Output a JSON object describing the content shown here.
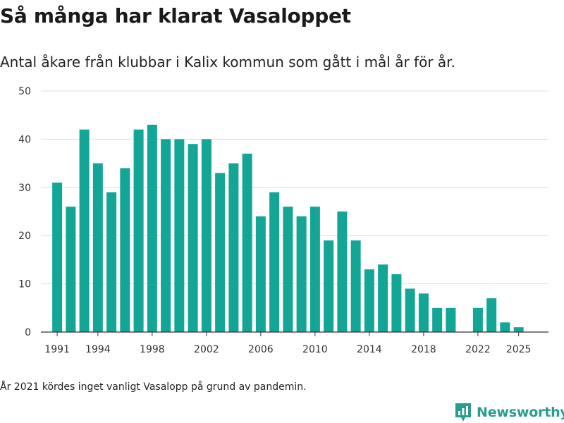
{
  "title": "Så många har klarat Vasaloppet",
  "subtitle": "Antal åkare från klubbar i Kalix kommun som gått i mål år för år.",
  "footnote": "År 2021 kördes inget vanligt Vasalopp på grund av pandemin.",
  "logo": {
    "text": "Newsworthy",
    "icon": "newsworthy-logo-icon",
    "color": "#2a9d8f"
  },
  "colors": {
    "bar": "#13a596",
    "grid": "#dddddd",
    "axis": "#333333"
  },
  "chart_data": {
    "type": "bar",
    "title": "",
    "xlabel": "",
    "ylabel": "",
    "ylim": [
      0,
      50
    ],
    "yticks": [
      0,
      10,
      20,
      30,
      40,
      50
    ],
    "xticks": [
      1991,
      1994,
      1998,
      2002,
      2006,
      2010,
      2014,
      2018,
      2022,
      2025
    ],
    "xlim": [
      1989.8,
      2027.2
    ],
    "grid": true,
    "legend": "none",
    "categories": [
      1991,
      1992,
      1993,
      1994,
      1995,
      1996,
      1997,
      1998,
      1999,
      2000,
      2001,
      2002,
      2003,
      2004,
      2005,
      2006,
      2007,
      2008,
      2009,
      2010,
      2011,
      2012,
      2013,
      2014,
      2015,
      2016,
      2017,
      2018,
      2019,
      2020,
      2022,
      2023,
      2024,
      2025
    ],
    "values": [
      31,
      26,
      42,
      35,
      29,
      34,
      42,
      43,
      40,
      40,
      39,
      40,
      33,
      35,
      37,
      24,
      29,
      26,
      24,
      26,
      19,
      25,
      19,
      13,
      14,
      12,
      9,
      8,
      5,
      5,
      5,
      7,
      2,
      1
    ]
  }
}
